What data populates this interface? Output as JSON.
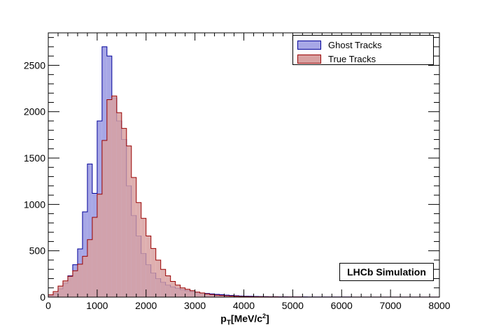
{
  "chart_data": {
    "type": "bar",
    "subtype": "histogram",
    "xlabel": {
      "p": "p",
      "sub": "T",
      "unit_main": "[MeV/c",
      "unit_sup": "2",
      "unit_end": "]"
    },
    "ylabel": "",
    "xlim": [
      0,
      8000
    ],
    "ylim": [
      0,
      2850
    ],
    "bin_width": 100,
    "xticks": [
      "0",
      "1000",
      "2000",
      "3000",
      "4000",
      "5000",
      "6000",
      "7000",
      "8000"
    ],
    "yticks": [
      "0",
      "500",
      "1000",
      "1500",
      "2000",
      "2500"
    ],
    "legend_position": "top-right",
    "annotation": "LHCb Simulation",
    "series": [
      {
        "name": "Ghost Tracks",
        "fill": "#a7a7e6",
        "stroke": "#000099",
        "values": [
          15,
          40,
          90,
          150,
          230,
          350,
          520,
          920,
          1435,
          1120,
          1900,
          2700,
          2600,
          2150,
          1900,
          1700,
          1200,
          880,
          660,
          470,
          350,
          260,
          200,
          160,
          130,
          110,
          95,
          80,
          70,
          60,
          50,
          45,
          40,
          35,
          30,
          26,
          22,
          18,
          15,
          12,
          10,
          9,
          8,
          7,
          6,
          5,
          5,
          4,
          4,
          3,
          3,
          3,
          3,
          2,
          2,
          2,
          2,
          2,
          2,
          2,
          2,
          2,
          1,
          1,
          1,
          1,
          1,
          1,
          1,
          1,
          1,
          1,
          1,
          1,
          1,
          1,
          1,
          1,
          1,
          1
        ]
      },
      {
        "name": "True Tracks",
        "fill": "#d8a1a1",
        "stroke": "#990000",
        "values": [
          25,
          60,
          120,
          175,
          225,
          285,
          355,
          440,
          620,
          860,
          1110,
          1690,
          2130,
          2170,
          1990,
          1820,
          1630,
          1290,
          1020,
          850,
          660,
          525,
          400,
          300,
          230,
          170,
          130,
          100,
          85,
          70,
          55,
          45,
          35,
          28,
          22,
          18,
          14,
          11,
          9,
          7,
          6,
          5,
          4,
          4,
          3,
          3,
          3,
          2,
          2,
          2,
          2,
          2,
          1,
          1,
          1,
          1,
          1,
          1,
          1,
          1,
          1,
          1,
          1,
          1,
          1,
          1,
          1,
          1,
          1,
          1,
          1,
          1,
          1,
          1,
          1,
          1,
          1,
          1,
          1,
          1
        ]
      }
    ]
  }
}
